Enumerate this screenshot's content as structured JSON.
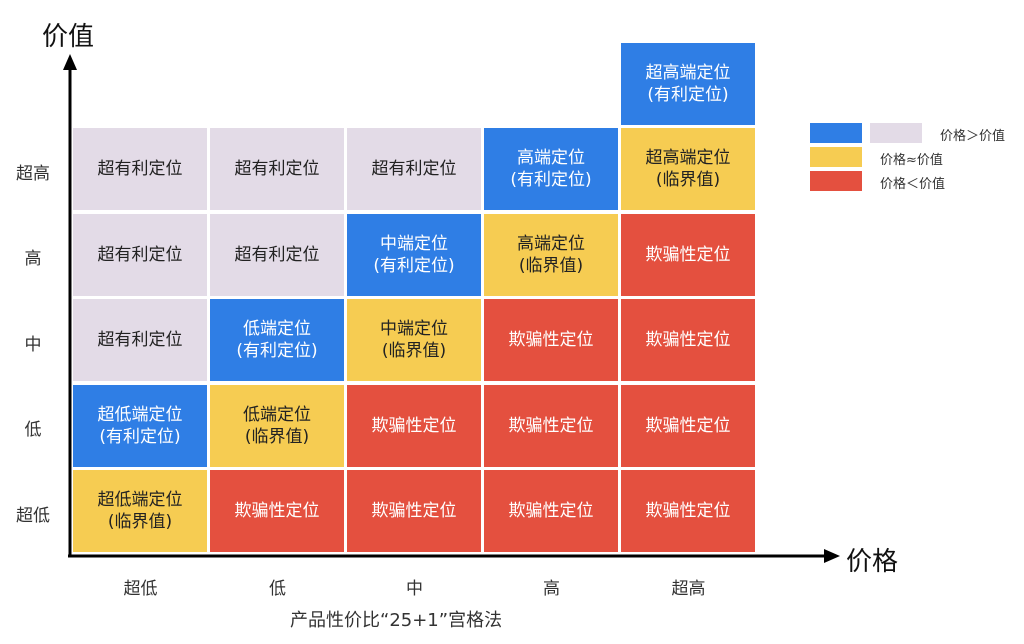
{
  "diagram": {
    "y_axis_label": "价值",
    "x_axis_label": "价格",
    "row_labels": [
      "超高",
      "高",
      "中",
      "低",
      "超低"
    ],
    "col_labels": [
      "超低",
      "低",
      "中",
      "高",
      "超高"
    ],
    "footer": "产品性价比“25+1”宫格法",
    "colors": {
      "blue": "#2f7ee5",
      "lavender": "#e3dbe7",
      "yellow": "#f6cc52",
      "red": "#e4503f"
    },
    "top_cell": {
      "text": "超高端定位\n(有利定位)",
      "color": "blue"
    },
    "grid": [
      [
        {
          "text": "超有利定位",
          "color": "lavender"
        },
        {
          "text": "超有利定位",
          "color": "lavender"
        },
        {
          "text": "超有利定位",
          "color": "lavender"
        },
        {
          "text": "高端定位\n(有利定位)",
          "color": "blue"
        },
        {
          "text": "超高端定位\n(临界值)",
          "color": "yellow"
        }
      ],
      [
        {
          "text": "超有利定位",
          "color": "lavender"
        },
        {
          "text": "超有利定位",
          "color": "lavender"
        },
        {
          "text": "中端定位\n(有利定位)",
          "color": "blue"
        },
        {
          "text": "高端定位\n(临界值)",
          "color": "yellow"
        },
        {
          "text": "欺骗性定位",
          "color": "red"
        }
      ],
      [
        {
          "text": "超有利定位",
          "color": "lavender"
        },
        {
          "text": "低端定位\n(有利定位)",
          "color": "blue"
        },
        {
          "text": "中端定位\n(临界值)",
          "color": "yellow"
        },
        {
          "text": "欺骗性定位",
          "color": "red"
        },
        {
          "text": "欺骗性定位",
          "color": "red"
        }
      ],
      [
        {
          "text": "超低端定位\n(有利定位)",
          "color": "blue"
        },
        {
          "text": "低端定位\n(临界值)",
          "color": "yellow"
        },
        {
          "text": "欺骗性定位",
          "color": "red"
        },
        {
          "text": "欺骗性定位",
          "color": "red"
        },
        {
          "text": "欺骗性定位",
          "color": "red"
        }
      ],
      [
        {
          "text": "超低端定位\n(临界值)",
          "color": "yellow"
        },
        {
          "text": "欺骗性定位",
          "color": "red"
        },
        {
          "text": "欺骗性定位",
          "color": "red"
        },
        {
          "text": "欺骗性定位",
          "color": "red"
        },
        {
          "text": "欺骗性定位",
          "color": "red"
        }
      ]
    ],
    "legend": [
      {
        "swatches": [
          "blue",
          "lavender"
        ],
        "text": "价格＞价值"
      },
      {
        "swatches": [
          "yellow"
        ],
        "text": "价格≈价值"
      },
      {
        "swatches": [
          "red"
        ],
        "text": "价格＜价值"
      }
    ]
  }
}
